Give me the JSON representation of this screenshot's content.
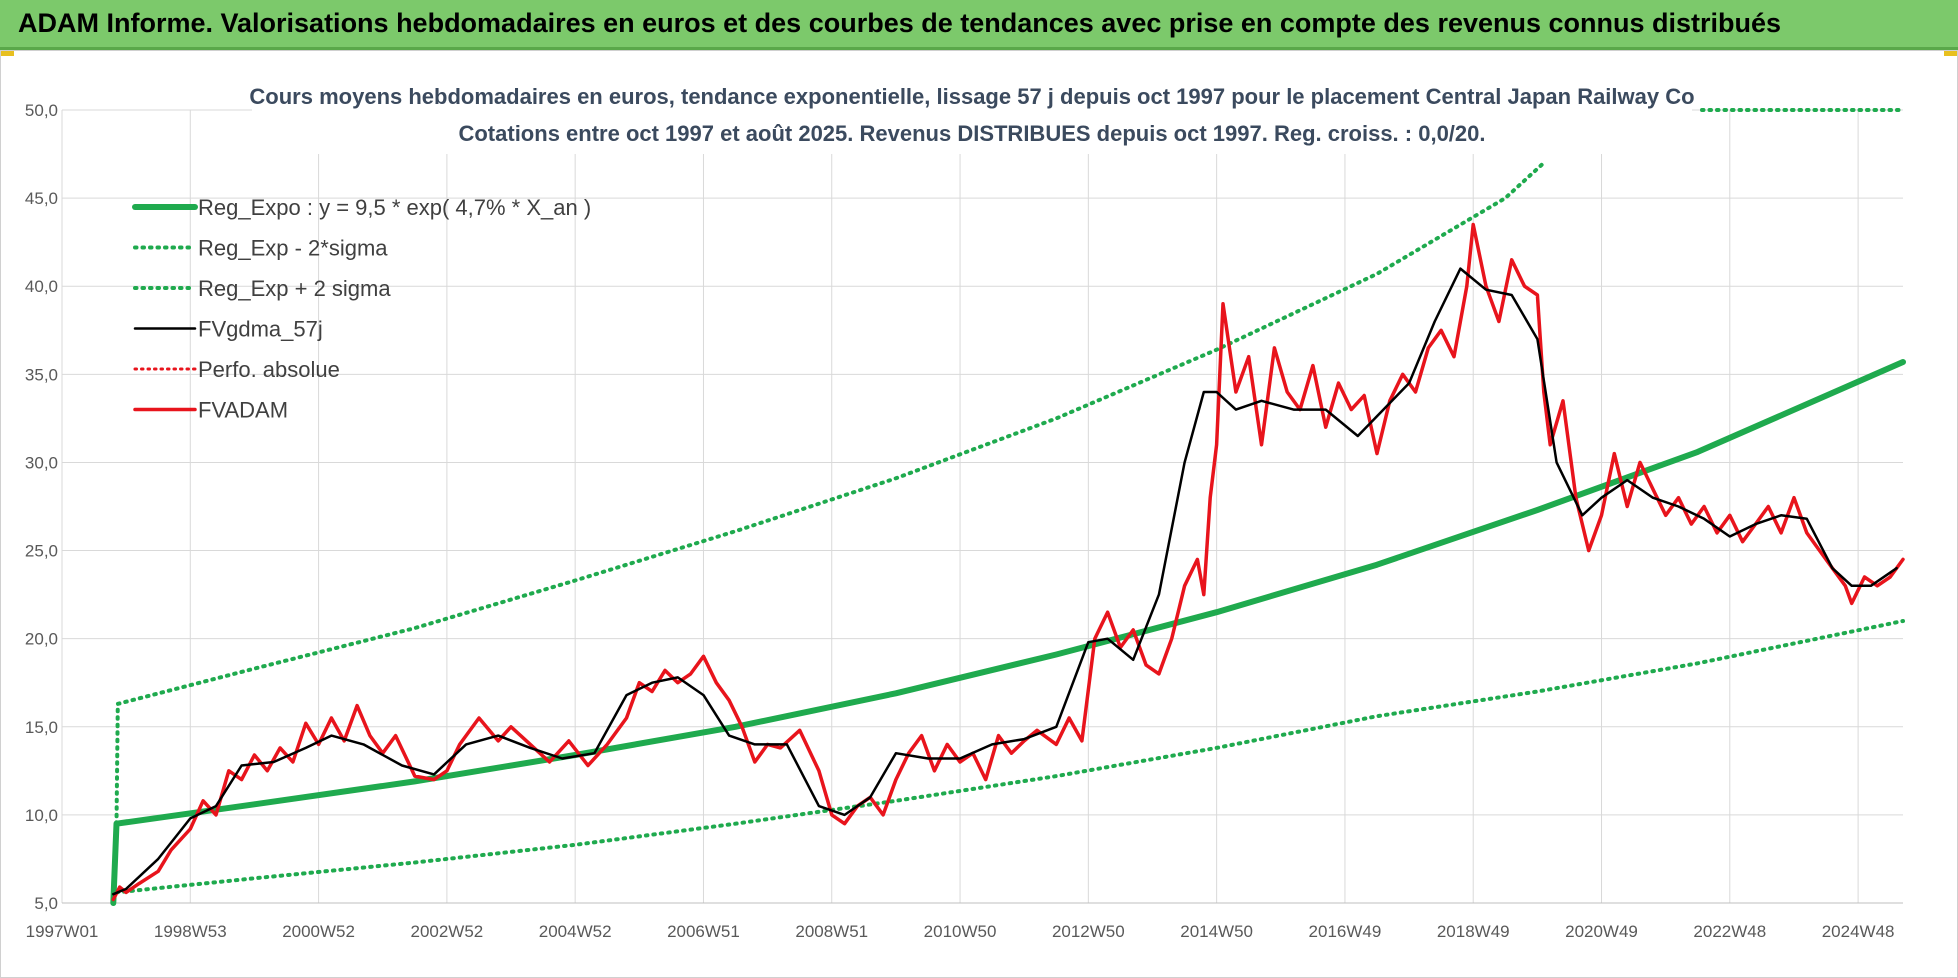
{
  "banner": {
    "title": "ADAM Informe. Valorisations hebdomadaires en euros et des courbes de tendances avec prise en compte des revenus connus distribués"
  },
  "colors": {
    "banner": "#7cc96b",
    "trend": "#1faa4e",
    "band": "#1faa4e",
    "smoothed": "#000000",
    "price": "#e8141c",
    "perf": "#e8141c"
  },
  "chart_data": {
    "type": "line",
    "title_line1": "Cours moyens hebdomadaires en euros, tendance exponentielle, lissage 57 j depuis oct 1997 pour le placement Central Japan Railway Co",
    "title_line2": "Cotations entre oct 1997 et août 2025.  Revenus DISTRIBUES depuis oct 1997. Reg. croiss. : 0,0/20.",
    "xlabel": "",
    "ylabel": "",
    "ylim": [
      5,
      50
    ],
    "xlim": [
      1997.0,
      2025.7
    ],
    "y_ticks": [
      "5,0",
      "10,0",
      "15,0",
      "20,0",
      "25,0",
      "30,0",
      "35,0",
      "40,0",
      "45,0",
      "50,0"
    ],
    "x_ticks": [
      {
        "label": "1997W01",
        "x": 1997.0
      },
      {
        "label": "1998W53",
        "x": 1999.0
      },
      {
        "label": "2000W52",
        "x": 2001.0
      },
      {
        "label": "2002W52",
        "x": 2003.0
      },
      {
        "label": "2004W52",
        "x": 2005.0
      },
      {
        "label": "2006W51",
        "x": 2007.0
      },
      {
        "label": "2008W51",
        "x": 2009.0
      },
      {
        "label": "2010W50",
        "x": 2011.0
      },
      {
        "label": "2012W50",
        "x": 2013.0
      },
      {
        "label": "2014W50",
        "x": 2015.0
      },
      {
        "label": "2016W49",
        "x": 2017.0
      },
      {
        "label": "2018W49",
        "x": 2019.0
      },
      {
        "label": "2020W49",
        "x": 2021.0
      },
      {
        "label": "2022W48",
        "x": 2023.0
      },
      {
        "label": "2024W48",
        "x": 2025.0
      }
    ],
    "grid": true,
    "legend_position": "top-left",
    "legend": [
      "Reg_Expo : y = 9,5 * exp( 4,7% *  X_an )",
      "Reg_Exp - 2*sigma",
      "Reg_Exp + 2 sigma",
      "FVgdma_57j",
      "Perfo. absolue",
      "FVADAM"
    ],
    "series": [
      {
        "name": "Reg_Expo : y = 9,5 * exp( 4,7% *  X_an )",
        "style": "solid-thick",
        "x": [
          1997.8,
          1997.85,
          2000,
          2002.5,
          2005,
          2007.5,
          2010,
          2012.5,
          2015,
          2017.5,
          2020,
          2022.5,
          2025.7
        ],
        "y": [
          5.0,
          9.5,
          10.6,
          11.9,
          13.4,
          15.0,
          16.9,
          19.1,
          21.5,
          24.2,
          27.3,
          30.6,
          35.7
        ]
      },
      {
        "name": "Reg_Exp - 2*sigma",
        "style": "dotted",
        "x": [
          1997.85,
          2000,
          2002.5,
          2005,
          2007.5,
          2010,
          2012.5,
          2015,
          2017.5,
          2020,
          2022.5,
          2025.7
        ],
        "y": [
          5.6,
          6.4,
          7.3,
          8.3,
          9.5,
          10.8,
          12.2,
          13.8,
          15.6,
          17.0,
          18.6,
          21.0
        ]
      },
      {
        "name": "Reg_Exp + 2 sigma",
        "style": "dotted",
        "x": [
          1997.85,
          1997.87,
          2000,
          2002.5,
          2005,
          2007.5,
          2010,
          2012.5,
          2015,
          2017.5,
          2019.5,
          2020.1
        ],
        "y": [
          9.5,
          16.3,
          18.3,
          20.6,
          23.3,
          26.1,
          29.1,
          32.5,
          36.4,
          40.7,
          45.0,
          47.0
        ]
      },
      {
        "name": "FVgdma_57j",
        "style": "solid-thin",
        "x": [
          1997.8,
          1998.0,
          1998.5,
          1999.0,
          1999.4,
          1999.8,
          2000.3,
          2000.8,
          2001.2,
          2001.7,
          2002.3,
          2002.8,
          2003.3,
          2003.8,
          2004.3,
          2004.8,
          2005.3,
          2005.8,
          2006.2,
          2006.6,
          2007.0,
          2007.4,
          2007.8,
          2008.3,
          2008.8,
          2009.2,
          2009.6,
          2010.0,
          2010.5,
          2011.0,
          2011.5,
          2012.0,
          2012.5,
          2013.0,
          2013.3,
          2013.7,
          2014.1,
          2014.5,
          2014.8,
          2015.0,
          2015.3,
          2015.7,
          2016.2,
          2016.7,
          2017.2,
          2017.6,
          2018.0,
          2018.4,
          2018.8,
          2019.2,
          2019.6,
          2020.0,
          2020.3,
          2020.7,
          2021.0,
          2021.4,
          2021.8,
          2022.2,
          2022.6,
          2023.0,
          2023.4,
          2023.8,
          2024.2,
          2024.6,
          2024.9,
          2025.2,
          2025.6
        ],
        "y": [
          5.5,
          5.8,
          7.5,
          9.8,
          10.5,
          12.8,
          13.0,
          13.8,
          14.5,
          14.0,
          12.8,
          12.3,
          14.0,
          14.5,
          13.8,
          13.2,
          13.5,
          16.8,
          17.5,
          17.8,
          16.8,
          14.5,
          14.0,
          14.0,
          10.5,
          10.0,
          11.0,
          13.5,
          13.2,
          13.2,
          14.0,
          14.3,
          15.0,
          19.8,
          20.0,
          18.8,
          22.5,
          30.0,
          34.0,
          34.0,
          33.0,
          33.5,
          33.0,
          33.0,
          31.5,
          33.0,
          34.5,
          38.0,
          41.0,
          39.8,
          39.5,
          37.0,
          30.0,
          27.0,
          28.0,
          29.0,
          28.0,
          27.5,
          26.8,
          25.8,
          26.5,
          27.0,
          26.8,
          24.0,
          23.0,
          23.0,
          24.0
        ]
      },
      {
        "name": "Perfo. absolue",
        "style": "dotted-red",
        "x": [],
        "y": []
      },
      {
        "name": "FVADAM",
        "style": "solid-red",
        "x": [
          1997.8,
          1997.9,
          1998.0,
          1998.2,
          1998.5,
          1998.7,
          1999.0,
          1999.2,
          1999.4,
          1999.6,
          1999.8,
          2000.0,
          2000.2,
          2000.4,
          2000.6,
          2000.8,
          2001.0,
          2001.2,
          2001.4,
          2001.6,
          2001.8,
          2002.0,
          2002.2,
          2002.5,
          2002.8,
          2003.0,
          2003.2,
          2003.5,
          2003.8,
          2004.0,
          2004.3,
          2004.6,
          2004.9,
          2005.2,
          2005.5,
          2005.8,
          2006.0,
          2006.2,
          2006.4,
          2006.6,
          2006.8,
          2007.0,
          2007.2,
          2007.4,
          2007.6,
          2007.8,
          2008.0,
          2008.2,
          2008.5,
          2008.8,
          2009.0,
          2009.2,
          2009.4,
          2009.6,
          2009.8,
          2010.0,
          2010.2,
          2010.4,
          2010.6,
          2010.8,
          2011.0,
          2011.2,
          2011.4,
          2011.6,
          2011.8,
          2012.0,
          2012.2,
          2012.5,
          2012.7,
          2012.9,
          2013.1,
          2013.3,
          2013.5,
          2013.7,
          2013.9,
          2014.1,
          2014.3,
          2014.5,
          2014.7,
          2014.8,
          2014.9,
          2015.0,
          2015.1,
          2015.3,
          2015.5,
          2015.7,
          2015.9,
          2016.1,
          2016.3,
          2016.5,
          2016.7,
          2016.9,
          2017.1,
          2017.3,
          2017.5,
          2017.7,
          2017.9,
          2018.1,
          2018.3,
          2018.5,
          2018.7,
          2018.9,
          2019.0,
          2019.2,
          2019.4,
          2019.6,
          2019.8,
          2020.0,
          2020.1,
          2020.2,
          2020.4,
          2020.6,
          2020.8,
          2021.0,
          2021.2,
          2021.4,
          2021.6,
          2021.8,
          2022.0,
          2022.2,
          2022.4,
          2022.6,
          2022.8,
          2023.0,
          2023.2,
          2023.4,
          2023.6,
          2023.8,
          2024.0,
          2024.2,
          2024.4,
          2024.6,
          2024.8,
          2024.9,
          2025.1,
          2025.3,
          2025.5,
          2025.7
        ],
        "y": [
          5.2,
          5.9,
          5.6,
          6.1,
          6.8,
          8.0,
          9.2,
          10.8,
          10.0,
          12.5,
          12.0,
          13.4,
          12.5,
          13.8,
          13.0,
          15.2,
          14.0,
          15.5,
          14.2,
          16.2,
          14.5,
          13.5,
          14.5,
          12.2,
          12.0,
          12.5,
          14.0,
          15.5,
          14.2,
          15.0,
          14.0,
          13.0,
          14.2,
          12.8,
          14.0,
          15.5,
          17.5,
          17.0,
          18.2,
          17.5,
          18.0,
          19.0,
          17.5,
          16.5,
          15.0,
          13.0,
          14.0,
          13.8,
          14.8,
          12.5,
          10.0,
          9.5,
          10.5,
          11.0,
          10.0,
          12.0,
          13.5,
          14.5,
          12.5,
          14.0,
          13.0,
          13.5,
          12.0,
          14.5,
          13.5,
          14.2,
          14.8,
          14.0,
          15.5,
          14.2,
          20.0,
          21.5,
          19.5,
          20.5,
          18.5,
          18.0,
          20.0,
          23.0,
          24.5,
          22.5,
          28.0,
          31.0,
          39.0,
          34.0,
          36.0,
          31.0,
          36.5,
          34.0,
          33.0,
          35.5,
          32.0,
          34.5,
          33.0,
          33.8,
          30.5,
          33.5,
          35.0,
          34.0,
          36.5,
          37.5,
          36.0,
          40.0,
          43.5,
          40.0,
          38.0,
          41.5,
          40.0,
          39.5,
          34.0,
          31.0,
          33.5,
          28.0,
          25.0,
          27.0,
          30.5,
          27.5,
          30.0,
          28.5,
          27.0,
          28.0,
          26.5,
          27.5,
          26.0,
          27.0,
          25.5,
          26.5,
          27.5,
          26.0,
          28.0,
          26.0,
          25.0,
          24.0,
          23.0,
          22.0,
          23.5,
          23.0,
          23.5,
          24.5
        ]
      }
    ]
  }
}
